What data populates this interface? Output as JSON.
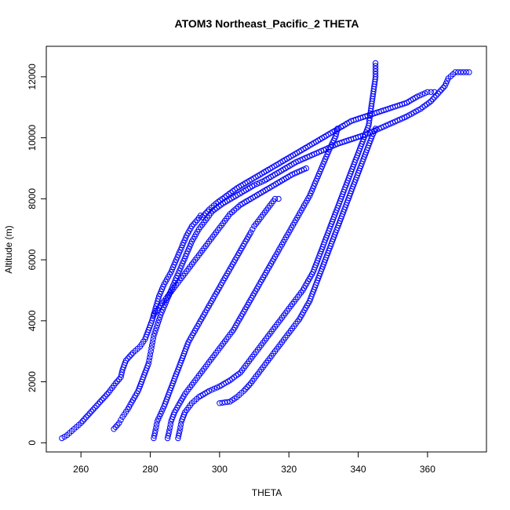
{
  "chart_data": {
    "type": "scatter",
    "title": "ATOM3 Northeast_Pacific_2 THETA",
    "xlabel": "THETA",
    "ylabel": "Altitude (m)",
    "xlim": [
      250,
      377
    ],
    "ylim": [
      -300,
      13000
    ],
    "xticks": [
      260,
      280,
      300,
      320,
      340,
      360
    ],
    "yticks": [
      0,
      2000,
      4000,
      6000,
      8000,
      10000,
      12000
    ],
    "grid": false,
    "legend": "none",
    "marker": "open-circle",
    "color": "#0000ff",
    "series": [
      {
        "points": [
          [
            254.5,
            150
          ],
          [
            256,
            250
          ],
          [
            258,
            450
          ],
          [
            260,
            650
          ],
          [
            262,
            900
          ],
          [
            264,
            1150
          ],
          [
            266,
            1400
          ],
          [
            268,
            1650
          ],
          [
            270,
            1950
          ],
          [
            271.5,
            2150
          ],
          [
            272,
            2400
          ],
          [
            273,
            2700
          ],
          [
            275,
            2950
          ],
          [
            277,
            3150
          ],
          [
            278.5,
            3400
          ],
          [
            279.5,
            3700
          ],
          [
            280.5,
            4000
          ],
          [
            281.5,
            4400
          ],
          [
            282.5,
            4800
          ],
          [
            284,
            5200
          ],
          [
            286,
            5600
          ],
          [
            287.5,
            6000
          ],
          [
            289,
            6400
          ],
          [
            290.5,
            6800
          ],
          [
            292,
            7100
          ],
          [
            293.5,
            7300
          ],
          [
            294.5,
            7450
          ]
        ]
      },
      {
        "points": [
          [
            269.5,
            450
          ],
          [
            271,
            650
          ],
          [
            272,
            850
          ],
          [
            273.5,
            1100
          ],
          [
            275,
            1400
          ],
          [
            276.5,
            1700
          ],
          [
            277.5,
            2000
          ],
          [
            278.5,
            2300
          ],
          [
            279.5,
            2600
          ],
          [
            280,
            2900
          ],
          [
            280.5,
            3200
          ],
          [
            281,
            3500
          ],
          [
            282,
            3850
          ],
          [
            283,
            4200
          ],
          [
            284.5,
            4600
          ],
          [
            286,
            5000
          ],
          [
            287.5,
            5400
          ],
          [
            289,
            5800
          ],
          [
            290.5,
            6200
          ],
          [
            292,
            6600
          ],
          [
            294,
            7000
          ],
          [
            296,
            7300
          ],
          [
            298,
            7600
          ],
          [
            301,
            7850
          ],
          [
            304,
            8050
          ],
          [
            307,
            8250
          ],
          [
            310,
            8450
          ],
          [
            313,
            8600
          ],
          [
            316,
            8800
          ],
          [
            319,
            9000
          ],
          [
            322,
            9200
          ],
          [
            326,
            9400
          ],
          [
            330,
            9600
          ],
          [
            334,
            9800
          ],
          [
            338,
            9950
          ],
          [
            342,
            10100
          ],
          [
            346,
            10300
          ],
          [
            350,
            10500
          ],
          [
            354,
            10700
          ],
          [
            358,
            10950
          ],
          [
            361,
            11200
          ],
          [
            363,
            11450
          ],
          [
            365,
            11700
          ],
          [
            366,
            11950
          ],
          [
            368,
            12150
          ],
          [
            372,
            12150
          ]
        ]
      },
      {
        "points": [
          [
            281,
            150
          ],
          [
            281.5,
            400
          ],
          [
            282,
            700
          ],
          [
            283,
            950
          ],
          [
            284,
            1200
          ],
          [
            285,
            1500
          ],
          [
            286,
            1800
          ],
          [
            287,
            2100
          ],
          [
            288,
            2400
          ],
          [
            289,
            2700
          ],
          [
            290,
            3000
          ],
          [
            291,
            3300
          ],
          [
            292.5,
            3600
          ],
          [
            294,
            3900
          ],
          [
            295.5,
            4200
          ],
          [
            297,
            4500
          ],
          [
            298.5,
            4800
          ],
          [
            300,
            5100
          ],
          [
            301.5,
            5400
          ],
          [
            303,
            5700
          ],
          [
            304.5,
            6000
          ],
          [
            306,
            6300
          ],
          [
            307.5,
            6600
          ],
          [
            309,
            6900
          ],
          [
            310,
            7100
          ],
          [
            312,
            7400
          ],
          [
            314,
            7700
          ],
          [
            316,
            8000
          ],
          [
            317,
            8000
          ]
        ]
      },
      {
        "points": [
          [
            285,
            150
          ],
          [
            285.5,
            400
          ],
          [
            286,
            700
          ],
          [
            287,
            1000
          ],
          [
            288.5,
            1300
          ],
          [
            290,
            1600
          ],
          [
            292,
            1900
          ],
          [
            294,
            2200
          ],
          [
            296,
            2500
          ],
          [
            298,
            2800
          ],
          [
            300,
            3100
          ],
          [
            302,
            3400
          ],
          [
            304,
            3700
          ],
          [
            305.5,
            4000
          ],
          [
            307,
            4300
          ],
          [
            308.5,
            4600
          ],
          [
            310,
            4900
          ],
          [
            311.5,
            5200
          ],
          [
            313,
            5500
          ],
          [
            314.5,
            5800
          ],
          [
            316,
            6100
          ],
          [
            318,
            6500
          ],
          [
            320,
            6900
          ],
          [
            322,
            7300
          ],
          [
            324,
            7700
          ],
          [
            326,
            8100
          ],
          [
            327.5,
            8500
          ],
          [
            329,
            8900
          ],
          [
            330.5,
            9300
          ],
          [
            332,
            9700
          ],
          [
            333.5,
            10050
          ],
          [
            334,
            10300
          ]
        ]
      },
      {
        "points": [
          [
            288,
            150
          ],
          [
            288.5,
            400
          ],
          [
            289,
            700
          ],
          [
            290,
            1000
          ],
          [
            292,
            1300
          ],
          [
            294,
            1500
          ],
          [
            297,
            1700
          ],
          [
            300,
            1850
          ],
          [
            303,
            2050
          ],
          [
            306,
            2300
          ],
          [
            308,
            2600
          ],
          [
            310,
            2900
          ],
          [
            312,
            3200
          ],
          [
            314,
            3500
          ],
          [
            316,
            3800
          ],
          [
            318,
            4100
          ],
          [
            320,
            4400
          ],
          [
            322,
            4700
          ],
          [
            324,
            5000
          ],
          [
            325.5,
            5300
          ],
          [
            327,
            5600
          ],
          [
            328,
            5900
          ],
          [
            329,
            6200
          ],
          [
            330,
            6500
          ],
          [
            331,
            6800
          ],
          [
            332,
            7100
          ],
          [
            333,
            7400
          ],
          [
            334,
            7700
          ],
          [
            335,
            8000
          ],
          [
            336,
            8300
          ],
          [
            337,
            8600
          ],
          [
            338,
            8900
          ],
          [
            339,
            9200
          ],
          [
            340,
            9500
          ],
          [
            341,
            9800
          ],
          [
            342,
            10100
          ],
          [
            343,
            10400
          ],
          [
            343.5,
            10800
          ],
          [
            344,
            11200
          ],
          [
            344.5,
            11600
          ],
          [
            345,
            12000
          ],
          [
            345,
            12450
          ]
        ]
      },
      {
        "points": [
          [
            300,
            1300
          ],
          [
            303,
            1350
          ],
          [
            305,
            1500
          ],
          [
            307,
            1700
          ],
          [
            309,
            1950
          ],
          [
            311,
            2250
          ],
          [
            313,
            2550
          ],
          [
            315,
            2850
          ],
          [
            317,
            3150
          ],
          [
            319,
            3450
          ],
          [
            321,
            3750
          ],
          [
            323,
            4050
          ],
          [
            324.5,
            4350
          ],
          [
            326,
            4650
          ],
          [
            327,
            4950
          ],
          [
            328,
            5250
          ],
          [
            329,
            5550
          ],
          [
            330,
            5850
          ],
          [
            331,
            6150
          ],
          [
            332,
            6450
          ],
          [
            333,
            6750
          ],
          [
            334,
            7050
          ],
          [
            335,
            7350
          ],
          [
            336,
            7650
          ],
          [
            337,
            7950
          ],
          [
            338,
            8250
          ],
          [
            339,
            8550
          ],
          [
            340,
            8850
          ],
          [
            341,
            9150
          ],
          [
            342,
            9450
          ],
          [
            343,
            9750
          ],
          [
            344,
            10050
          ],
          [
            345,
            10300
          ]
        ]
      },
      {
        "points": [
          [
            295,
            7400
          ],
          [
            297,
            7650
          ],
          [
            299,
            7850
          ],
          [
            302,
            8100
          ],
          [
            305,
            8350
          ],
          [
            308,
            8550
          ],
          [
            311,
            8750
          ],
          [
            314,
            8950
          ],
          [
            317,
            9150
          ],
          [
            320,
            9350
          ],
          [
            323,
            9550
          ],
          [
            326,
            9750
          ],
          [
            329,
            9950
          ],
          [
            332,
            10150
          ],
          [
            335,
            10350
          ],
          [
            338,
            10550
          ],
          [
            342,
            10700
          ],
          [
            346,
            10850
          ],
          [
            350,
            11000
          ],
          [
            354,
            11150
          ],
          [
            357,
            11350
          ],
          [
            360,
            11500
          ],
          [
            362,
            11500
          ]
        ]
      },
      {
        "points": [
          [
            281,
            4200
          ],
          [
            283,
            4500
          ],
          [
            285,
            4800
          ],
          [
            287,
            5100
          ],
          [
            289,
            5400
          ],
          [
            291,
            5700
          ],
          [
            293,
            6000
          ],
          [
            295,
            6300
          ],
          [
            297,
            6600
          ],
          [
            299,
            6900
          ],
          [
            301,
            7200
          ],
          [
            303,
            7500
          ],
          [
            306,
            7800
          ],
          [
            309,
            8000
          ],
          [
            312,
            8200
          ],
          [
            315,
            8400
          ],
          [
            318,
            8600
          ],
          [
            321,
            8800
          ],
          [
            325,
            9000
          ]
        ]
      }
    ]
  }
}
